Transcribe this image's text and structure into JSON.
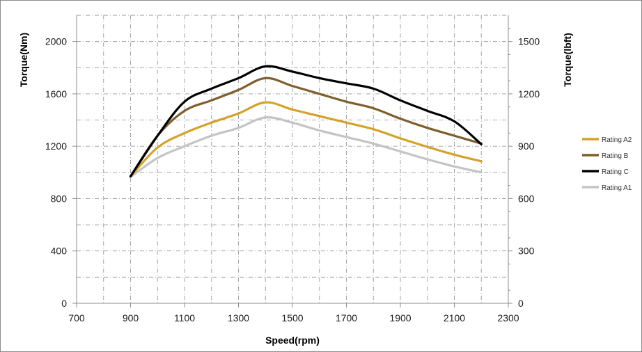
{
  "chart_data": {
    "type": "line",
    "xlabel": "Speed(rpm)",
    "ylabel": "Torque(Nm)",
    "y2label": "Torque(lbft)",
    "xlim": [
      700,
      2300
    ],
    "ylim": [
      0,
      2200
    ],
    "y2lim": [
      0,
      1650
    ],
    "xticks": [
      700,
      900,
      1100,
      1300,
      1500,
      1700,
      1900,
      2100,
      2300
    ],
    "yticks": [
      0,
      400,
      800,
      1200,
      1600,
      2000
    ],
    "y2ticks": [
      0,
      300,
      600,
      900,
      1200,
      1500
    ],
    "grid": true,
    "legend_position": "right",
    "series": [
      {
        "name": "Rating A2",
        "color": "#d4a22a",
        "x": [
          900,
          1000,
          1100,
          1200,
          1300,
          1400,
          1500,
          1600,
          1700,
          1800,
          1900,
          2000,
          2100,
          2200
        ],
        "values": [
          970,
          1190,
          1300,
          1380,
          1450,
          1535,
          1480,
          1430,
          1380,
          1330,
          1260,
          1195,
          1135,
          1085
        ]
      },
      {
        "name": "Rating B",
        "color": "#7d5f2d",
        "x": [
          900,
          1000,
          1100,
          1200,
          1300,
          1400,
          1500,
          1600,
          1700,
          1800,
          1900,
          2000,
          2100,
          2200
        ],
        "values": [
          970,
          1280,
          1470,
          1550,
          1630,
          1720,
          1660,
          1600,
          1540,
          1490,
          1410,
          1340,
          1280,
          1220
        ]
      },
      {
        "name": "Rating C",
        "color": "#000000",
        "x": [
          900,
          1000,
          1100,
          1200,
          1300,
          1400,
          1500,
          1600,
          1700,
          1800,
          1900,
          2000,
          2100,
          2200
        ],
        "values": [
          970,
          1280,
          1540,
          1640,
          1720,
          1810,
          1770,
          1720,
          1680,
          1640,
          1550,
          1470,
          1390,
          1215
        ]
      },
      {
        "name": "Rating A1",
        "color": "#c4c4c4",
        "x": [
          900,
          1000,
          1100,
          1200,
          1300,
          1400,
          1500,
          1600,
          1700,
          1800,
          1900,
          2000,
          2100,
          2200
        ],
        "values": [
          965,
          1110,
          1200,
          1280,
          1340,
          1420,
          1380,
          1320,
          1270,
          1220,
          1160,
          1100,
          1045,
          1000
        ]
      }
    ],
    "legend_order": [
      "Rating A2",
      "Rating B",
      "Rating C",
      "Rating A1"
    ]
  }
}
